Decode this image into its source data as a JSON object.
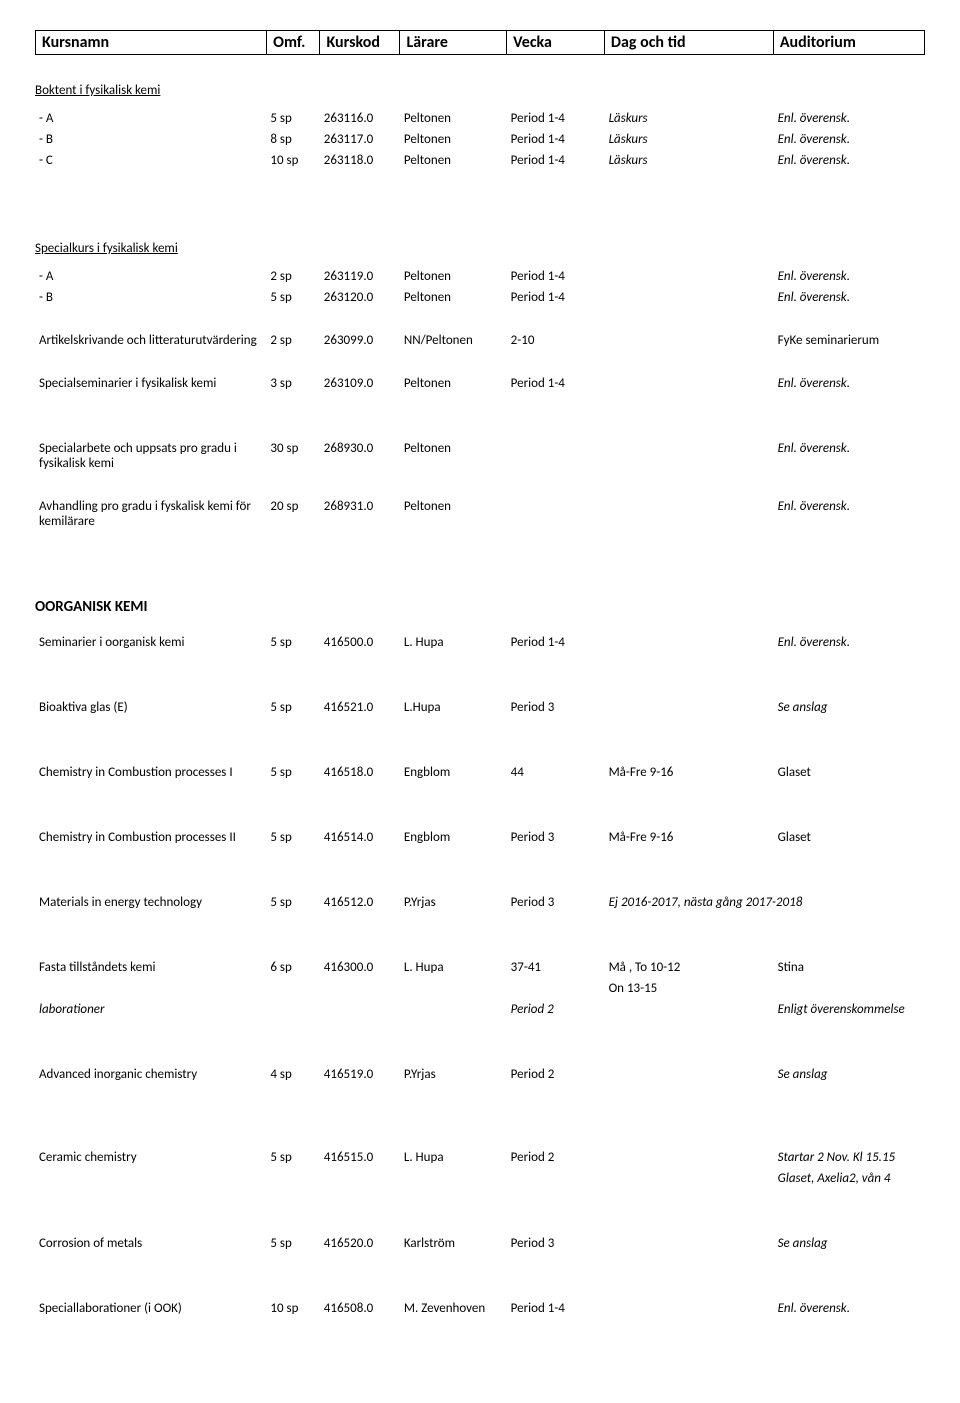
{
  "header": {
    "cols": [
      "Kursnamn",
      "Omf.",
      "Kurskod",
      "Lärare",
      "Vecka",
      "Dag och tid",
      "Auditorium"
    ]
  },
  "sections": [
    {
      "title": "Boktent i fysikalisk kemi",
      "type": "underline",
      "rows": [
        {
          "name": "- A",
          "omf": "5 sp",
          "kod": "263116.0",
          "lar": "Peltonen",
          "vecka": "Period 1-4",
          "dag": "Läskurs",
          "aud": "Enl. överensk.",
          "dag_italic": true,
          "aud_italic": true
        },
        {
          "name": "- B",
          "omf": "8 sp",
          "kod": "263117.0",
          "lar": "Peltonen",
          "vecka": "Period 1-4",
          "dag": "Läskurs",
          "aud": "Enl. överensk.",
          "dag_italic": true,
          "aud_italic": true
        },
        {
          "name": "- C",
          "omf": "10 sp",
          "kod": "263118.0",
          "lar": "Peltonen",
          "vecka": "Period 1-4",
          "dag": "Läskurs",
          "aud": "Enl. överensk.",
          "dag_italic": true,
          "aud_italic": true
        }
      ]
    },
    {
      "title": "Specialkurs i fysikalisk kemi",
      "type": "underline",
      "gap_before": true,
      "rows": [
        {
          "name": "- A",
          "omf": "2 sp",
          "kod": "263119.0",
          "lar": "Peltonen",
          "vecka": "Period 1-4",
          "dag": "",
          "aud": "Enl. överensk.",
          "aud_italic": true
        },
        {
          "name": "- B",
          "omf": "5 sp",
          "kod": "263120.0",
          "lar": "Peltonen",
          "vecka": "Period 1-4",
          "dag": "",
          "aud": "Enl. överensk.",
          "aud_italic": true
        }
      ]
    },
    {
      "type": "rowsonly",
      "rows": [
        {
          "name": "Artikelskrivande och litteraturutvärdering",
          "omf": "2 sp",
          "kod": "263099.0",
          "lar": "NN/Peltonen",
          "vecka": "2-10",
          "dag": "",
          "aud": "FyKe seminarierum"
        }
      ]
    },
    {
      "type": "rowsonly",
      "rows": [
        {
          "name": "Specialseminarier i fysikalisk kemi",
          "omf": "3 sp",
          "kod": "263109.0",
          "lar": "Peltonen",
          "vecka": "Period 1-4",
          "dag": "",
          "aud": "Enl. överensk.",
          "aud_italic": true
        }
      ]
    },
    {
      "type": "rowsonly",
      "gap_before": true,
      "rows": [
        {
          "name": "Specialarbete och uppsats pro gradu i fysikalisk kemi",
          "omf": "30 sp",
          "kod": "268930.0",
          "lar": "Peltonen",
          "vecka": "",
          "dag": "",
          "aud": "Enl. överensk.",
          "aud_italic": true
        }
      ]
    },
    {
      "type": "rowsonly",
      "rows": [
        {
          "name": "Avhandling pro gradu i fyskalisk kemi för kemilärare",
          "omf": "20 sp",
          "kod": "268931.0",
          "lar": "Peltonen",
          "vecka": "",
          "dag": "",
          "aud": "Enl. överensk.",
          "aud_italic": true
        }
      ]
    },
    {
      "title": "OORGANISK KEMI",
      "type": "major",
      "rows": [
        {
          "name": "Seminarier i oorganisk kemi",
          "omf": "5 sp",
          "kod": "416500.0",
          "lar": "L. Hupa",
          "vecka": "Period 1-4",
          "dag": "",
          "aud": "Enl. överensk.",
          "aud_italic": true
        }
      ]
    },
    {
      "type": "rowsonly",
      "gap_before": true,
      "rows": [
        {
          "name": "Bioaktiva glas (E)",
          "omf": "5 sp",
          "kod": "416521.0",
          "lar": "L.Hupa",
          "vecka": "Period 3",
          "dag": "",
          "aud": "Se anslag",
          "aud_italic": true
        }
      ]
    },
    {
      "type": "rowsonly",
      "gap_before": true,
      "rows": [
        {
          "name": "Chemistry in Combustion processes I",
          "omf": "5 sp",
          "kod": "416518.0",
          "lar": "Engblom",
          "vecka": "44",
          "dag": "Må-Fre 9-16",
          "aud": "Glaset"
        }
      ]
    },
    {
      "type": "rowsonly",
      "gap_before": true,
      "rows": [
        {
          "name": "Chemistry in Combustion processes II",
          "omf": "5 sp",
          "kod": "416514.0",
          "lar": "Engblom",
          "vecka": "Period 3",
          "dag": "Må-Fre 9-16",
          "aud": "Glaset"
        }
      ]
    },
    {
      "type": "rowsonly",
      "gap_before": true,
      "rows": [
        {
          "name": "Materials in energy technology",
          "omf": "5 sp",
          "kod": "416512.0",
          "lar": "P.Yrjas",
          "vecka": "Period 3",
          "dag": "Ej 2016-2017, nästa gång 2017-2018",
          "aud": "",
          "dag_italic": true,
          "dag_span": 2
        }
      ]
    },
    {
      "type": "rowsonly",
      "gap_before": true,
      "rows": [
        {
          "name": "Fasta tillståndets kemi",
          "omf": "6 sp",
          "kod": "416300.0",
          "lar": "L. Hupa",
          "vecka": "37-41",
          "dag": "Må , To 10-12",
          "aud": "Stina"
        },
        {
          "name": "",
          "omf": "",
          "kod": "",
          "lar": "",
          "vecka": "",
          "dag": "On 13-15",
          "aud": ""
        },
        {
          "name": "laborationer",
          "omf": "",
          "kod": "",
          "lar": "",
          "vecka": "Period 2",
          "dag": "",
          "aud": "Enligt överenskommelse",
          "name_italic": true,
          "vecka_italic": true,
          "aud_italic": true
        }
      ]
    },
    {
      "type": "rowsonly",
      "gap_before": true,
      "rows": [
        {
          "name": "Advanced inorganic chemistry",
          "omf": "4 sp",
          "kod": "416519.0",
          "lar": "P.Yrjas",
          "vecka": "Period 2",
          "dag": "",
          "aud": "Se anslag",
          "aud_italic": true
        }
      ]
    },
    {
      "type": "rowsonly",
      "gap_before": true,
      "big_gap": true,
      "rows": [
        {
          "name": "Ceramic chemistry",
          "omf": "5 sp",
          "kod": "416515.0",
          "lar": "L. Hupa",
          "vecka": "Period 2",
          "dag": "",
          "aud": "Startar 2 Nov. Kl 15.15",
          "aud_italic": true
        },
        {
          "name": "",
          "omf": "",
          "kod": "",
          "lar": "",
          "vecka": "",
          "dag": "",
          "aud": "Glaset, Axelia2, vån 4",
          "aud_italic": true
        }
      ]
    },
    {
      "type": "rowsonly",
      "gap_before": true,
      "rows": [
        {
          "name": "Corrosion of metals",
          "omf": "5 sp",
          "kod": "416520.0",
          "lar": "Karlström",
          "vecka": "Period 3",
          "dag": "",
          "aud": "Se anslag",
          "aud_italic": true
        }
      ]
    },
    {
      "type": "rowsonly",
      "gap_before": true,
      "rows": [
        {
          "name": "Speciallaborationer (i OOK)",
          "omf": "10 sp",
          "kod": "416508.0",
          "lar": "M. Zevenhoven",
          "vecka": "Period 1-4",
          "dag": "",
          "aud": "Enl. överensk.",
          "aud_italic": true
        }
      ]
    }
  ]
}
